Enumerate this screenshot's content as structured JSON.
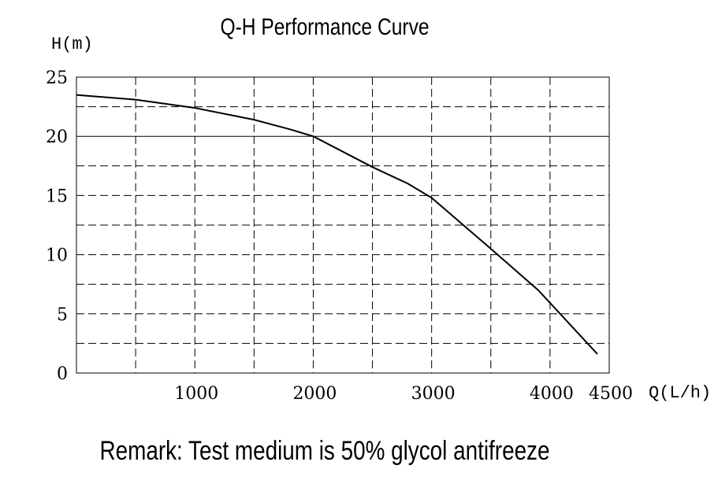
{
  "chart_data": {
    "type": "line",
    "title": "Q-H Performance Curve",
    "xlabel": "Q(L/h)",
    "ylabel": "H(m)",
    "xlim": [
      0,
      4500
    ],
    "ylim": [
      0,
      25
    ],
    "x_ticks": [
      "1000",
      "2000",
      "3000",
      "4000",
      "4500"
    ],
    "y_ticks": [
      "0",
      "5",
      "10",
      "15",
      "20",
      "25"
    ],
    "grid": true,
    "series": [
      {
        "x": [
          0,
          500,
          1000,
          1500,
          1800,
          2000,
          2500,
          2800,
          3000,
          3500,
          3900,
          4400
        ],
        "y": [
          23.5,
          23.1,
          22.4,
          21.4,
          20.6,
          20.0,
          17.4,
          16.0,
          14.8,
          10.5,
          7.0,
          1.6
        ]
      }
    ]
  },
  "remark": "Remark: Test medium is 50% glycol antifreeze"
}
